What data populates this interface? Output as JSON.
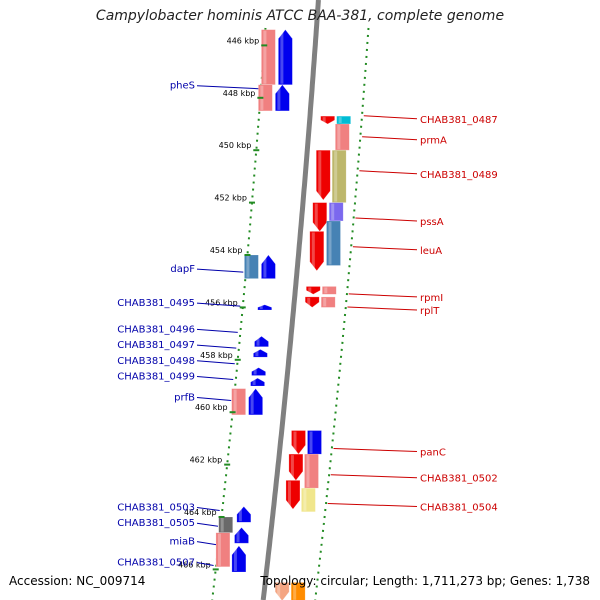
{
  "title": "Campylobacter hominis ATCC BAA-381, complete genome",
  "footer": {
    "accession": "Accession: NC_009714",
    "info": "Topology: circular; Length: 1,711,273 bp; Genes: 1,738"
  },
  "ticks": [
    {
      "label": "446 kbp",
      "kbp": 446
    },
    {
      "label": "448 kbp",
      "kbp": 448
    },
    {
      "label": "450 kbp",
      "kbp": 450
    },
    {
      "label": "452 kbp",
      "kbp": 452
    },
    {
      "label": "454 kbp",
      "kbp": 454
    },
    {
      "label": "456 kbp",
      "kbp": 456
    },
    {
      "label": "458 kbp",
      "kbp": 458
    },
    {
      "label": "460 kbp",
      "kbp": 460
    },
    {
      "label": "462 kbp",
      "kbp": 462
    },
    {
      "label": "464 kbp",
      "kbp": 464
    },
    {
      "label": "466 kbp",
      "kbp": 466
    }
  ],
  "left_labels": [
    {
      "text": "pheS",
      "kbp": 447.5
    },
    {
      "text": "dapF",
      "kbp": 454.5
    },
    {
      "text": "CHAB381_0495",
      "kbp": 455.8
    },
    {
      "text": "CHAB381_0496",
      "kbp": 456.8
    },
    {
      "text": "CHAB381_0497",
      "kbp": 457.4
    },
    {
      "text": "CHAB381_0498",
      "kbp": 458.0
    },
    {
      "text": "CHAB381_0499",
      "kbp": 458.6
    },
    {
      "text": "prfB",
      "kbp": 459.4
    },
    {
      "text": "CHAB381_0503",
      "kbp": 463.6
    },
    {
      "text": "CHAB381_0505",
      "kbp": 464.2
    },
    {
      "text": "miaB",
      "kbp": 464.9
    },
    {
      "text": "CHAB381_0507",
      "kbp": 465.7
    }
  ],
  "right_labels": [
    {
      "text": "CHAB381_0487",
      "kbp": 448.8
    },
    {
      "text": "prmA",
      "kbp": 449.6
    },
    {
      "text": "CHAB381_0489",
      "kbp": 450.9
    },
    {
      "text": "pssA",
      "kbp": 452.7
    },
    {
      "text": "leuA",
      "kbp": 453.8
    },
    {
      "text": "rpmI",
      "kbp": 455.6
    },
    {
      "text": "rplT",
      "kbp": 456.1
    },
    {
      "text": "panC",
      "kbp": 461.5
    },
    {
      "text": "CHAB381_0502",
      "kbp": 462.5
    },
    {
      "text": "CHAB381_0504",
      "kbp": 463.6
    }
  ],
  "genes": [
    {
      "strand": "-",
      "lane": 0,
      "start": 445.4,
      "end": 447.5,
      "color": "#0000ee"
    },
    {
      "strand": "-",
      "lane": 1,
      "start": 445.4,
      "end": 447.5,
      "color": "#f08080"
    },
    {
      "strand": "-",
      "lane": 0,
      "start": 447.5,
      "end": 448.5,
      "color": "#0000ee"
    },
    {
      "strand": "-",
      "lane": 1,
      "start": 447.5,
      "end": 448.5,
      "color": "#f08080"
    },
    {
      "strand": "-",
      "lane": 0,
      "start": 454.0,
      "end": 454.9,
      "color": "#0000ee"
    },
    {
      "strand": "-",
      "lane": 1,
      "start": 454.0,
      "end": 454.9,
      "color": "#4682b4"
    },
    {
      "strand": "-",
      "lane": 0,
      "start": 455.9,
      "end": 456.1,
      "color": "#0000ee"
    },
    {
      "strand": "-",
      "lane": 0,
      "start": 457.1,
      "end": 457.5,
      "color": "#0000ee"
    },
    {
      "strand": "-",
      "lane": 0,
      "start": 457.6,
      "end": 457.9,
      "color": "#0000ee"
    },
    {
      "strand": "-",
      "lane": 0,
      "start": 458.3,
      "end": 458.6,
      "color": "#0000ee"
    },
    {
      "strand": "-",
      "lane": 0,
      "start": 458.7,
      "end": 459.0,
      "color": "#0000ee"
    },
    {
      "strand": "-",
      "lane": 0,
      "start": 459.1,
      "end": 460.1,
      "color": "#0000ee"
    },
    {
      "strand": "-",
      "lane": 1,
      "start": 459.1,
      "end": 460.1,
      "color": "#f08080"
    },
    {
      "strand": "-",
      "lane": 0,
      "start": 463.6,
      "end": 464.2,
      "color": "#0000ee"
    },
    {
      "strand": "-",
      "lane": 1,
      "start": 464.0,
      "end": 464.6,
      "color": "#696969"
    },
    {
      "strand": "-",
      "lane": 0,
      "start": 464.4,
      "end": 465.0,
      "color": "#0000ee"
    },
    {
      "strand": "-",
      "lane": 1,
      "start": 464.6,
      "end": 465.9,
      "color": "#f08080"
    },
    {
      "strand": "-",
      "lane": 0,
      "start": 465.1,
      "end": 466.1,
      "color": "#0000ee"
    },
    {
      "strand": "+",
      "lane": 0,
      "start": 448.7,
      "end": 449.0,
      "color": "#ee0000"
    },
    {
      "strand": "+",
      "lane": 1,
      "start": 448.7,
      "end": 449.0,
      "color": "#00bcd4"
    },
    {
      "strand": "+",
      "lane": 1,
      "start": 449.0,
      "end": 450.0,
      "color": "#f08080"
    },
    {
      "strand": "+",
      "lane": 0,
      "start": 450.0,
      "end": 451.9,
      "color": "#ee0000"
    },
    {
      "strand": "+",
      "lane": 1,
      "start": 450.0,
      "end": 452.0,
      "color": "#bdb76b"
    },
    {
      "strand": "+",
      "lane": 0,
      "start": 452.0,
      "end": 453.1,
      "color": "#ee0000"
    },
    {
      "strand": "+",
      "lane": 1,
      "start": 452.0,
      "end": 452.7,
      "color": "#7b68ee"
    },
    {
      "strand": "+",
      "lane": 0,
      "start": 453.1,
      "end": 454.6,
      "color": "#ee0000"
    },
    {
      "strand": "+",
      "lane": 1,
      "start": 452.7,
      "end": 454.4,
      "color": "#4682b4"
    },
    {
      "strand": "+",
      "lane": 0,
      "start": 455.2,
      "end": 455.5,
      "color": "#ee0000"
    },
    {
      "strand": "+",
      "lane": 1,
      "start": 455.2,
      "end": 455.5,
      "color": "#f08080"
    },
    {
      "strand": "+",
      "lane": 0,
      "start": 455.6,
      "end": 456.0,
      "color": "#ee0000"
    },
    {
      "strand": "+",
      "lane": 1,
      "start": 455.6,
      "end": 456.0,
      "color": "#f08080"
    },
    {
      "strand": "+",
      "lane": 0,
      "start": 460.7,
      "end": 461.6,
      "color": "#ee0000"
    },
    {
      "strand": "+",
      "lane": 1,
      "start": 460.7,
      "end": 461.6,
      "color": "#0000ee"
    },
    {
      "strand": "+",
      "lane": 0,
      "start": 461.6,
      "end": 462.6,
      "color": "#ee0000"
    },
    {
      "strand": "+",
      "lane": 1,
      "start": 461.6,
      "end": 462.9,
      "color": "#f08080"
    },
    {
      "strand": "+",
      "lane": 0,
      "start": 462.6,
      "end": 463.7,
      "color": "#ee0000"
    },
    {
      "strand": "+",
      "lane": 1,
      "start": 462.9,
      "end": 463.8,
      "color": "#f0e68c"
    },
    {
      "strand": "+",
      "lane": 0,
      "start": 466.5,
      "end": 467.2,
      "color": "#f4a582"
    },
    {
      "strand": "+",
      "lane": 1,
      "start": 466.5,
      "end": 467.2,
      "color": "#ff8c00"
    }
  ],
  "colors": {
    "backbone": "#808080",
    "dots": "#228b22",
    "left_label": "#0000aa",
    "right_label": "#cc0000"
  }
}
